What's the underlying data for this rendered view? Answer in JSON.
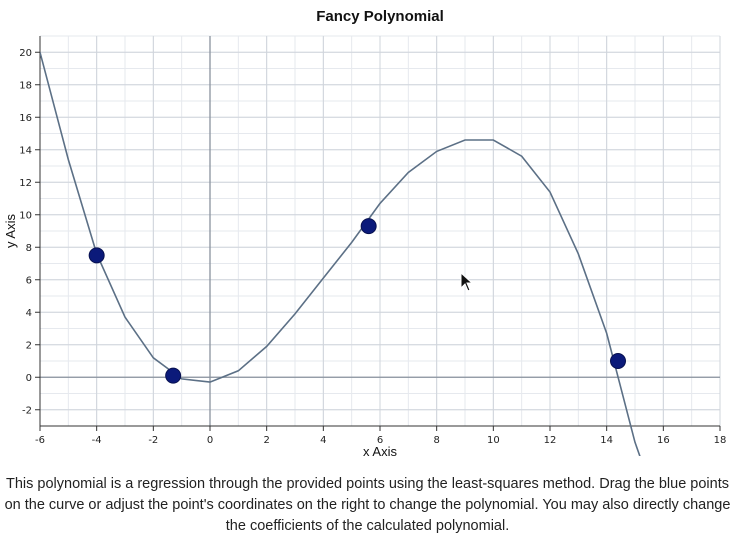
{
  "chart_data": {
    "type": "line",
    "title": "Fancy Polynomial",
    "xlabel": "x Axis",
    "ylabel": "y Axis",
    "xlim": [
      -6,
      18
    ],
    "ylim": [
      -3,
      21
    ],
    "xticks": [
      -6,
      -4,
      -2,
      0,
      2,
      4,
      6,
      8,
      10,
      12,
      14,
      16,
      18
    ],
    "yticks": [
      -2,
      0,
      2,
      4,
      6,
      8,
      10,
      12,
      14,
      16,
      18,
      20
    ],
    "grid": true,
    "minor_grid_step": 1,
    "curve": {
      "description_type": "polynomial",
      "samples_x": [
        -6,
        -5,
        -4,
        -3,
        -2,
        -1,
        0,
        1,
        2,
        3,
        4,
        5,
        6,
        7,
        8,
        9,
        10,
        11,
        12,
        13,
        14,
        15,
        15.2
      ],
      "samples_y": [
        20.0,
        13.4,
        7.6,
        3.7,
        1.2,
        -0.1,
        -0.3,
        0.4,
        1.9,
        3.9,
        6.1,
        8.3,
        10.7,
        12.6,
        13.9,
        14.6,
        14.6,
        13.6,
        11.4,
        7.6,
        2.7,
        -4.0,
        -5.0
      ],
      "color": "#5c7086"
    },
    "points": [
      {
        "x": -4.0,
        "y": 7.5
      },
      {
        "x": -1.3,
        "y": 0.1
      },
      {
        "x": 5.6,
        "y": 9.3
      },
      {
        "x": 14.4,
        "y": 1.0
      }
    ],
    "point_color": "#0b1a7a"
  },
  "description": "This polynomial is a regression through the provided points using the least-squares method. Drag the blue points on the curve or adjust the point's coordinates on the right to change the polynomial. You may also directly change the coefficients of the calculated polynomial."
}
